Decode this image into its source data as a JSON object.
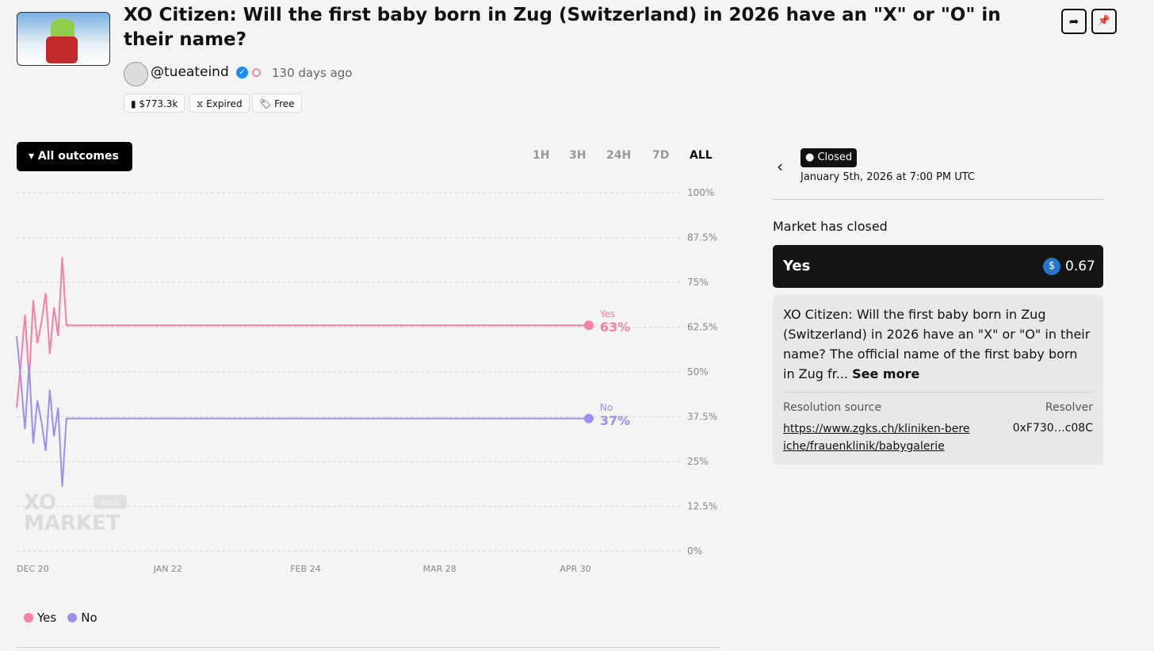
{
  "header": {
    "title": "XO Citizen: Will the first baby born in Zug (Switzerland) in 2026 have an \"X\" or \"O\" in their name?",
    "handle": "@tueateind",
    "age": "130 days ago",
    "stats": [
      "$773.3k",
      "Expired",
      "Free"
    ]
  },
  "controls": {
    "outcomes_button": "All outcomes",
    "ranges": [
      "1H",
      "3H",
      "24H",
      "7D",
      "ALL"
    ],
    "active_range": "ALL"
  },
  "watermark": {
    "brand_top": "XO",
    "brand_bottom": "MARKET",
    "badge": "Beta"
  },
  "chart_data": {
    "type": "line",
    "x": [
      "Dec 20",
      "Dec 21",
      "Dec 22",
      "Dec 23",
      "Dec 24",
      "Dec 25",
      "Dec 26",
      "Dec 27",
      "Dec 28",
      "Dec 29",
      "Dec 30",
      "Dec 31",
      "Jan 1",
      "May 7"
    ],
    "series": [
      {
        "name": "Yes",
        "color": "#f4819f",
        "values": [
          40,
          52,
          66,
          48,
          70,
          58,
          64,
          72,
          55,
          68,
          60,
          82,
          63,
          63
        ],
        "value_labels": [
          null,
          null,
          null,
          null,
          null,
          null,
          null,
          null,
          null,
          null,
          null,
          null,
          null,
          "63%"
        ]
      },
      {
        "name": "No",
        "color": "#9d8ff0",
        "values": [
          60,
          48,
          34,
          52,
          30,
          42,
          36,
          28,
          45,
          32,
          40,
          18,
          37,
          37
        ],
        "value_labels": [
          null,
          null,
          null,
          null,
          null,
          null,
          null,
          null,
          null,
          null,
          null,
          null,
          null,
          "37%"
        ]
      }
    ],
    "xlim": [
      "Dec 20",
      "May 29"
    ],
    "xticks": [
      {
        "value": "Dec 20",
        "label": "DEC 20"
      },
      {
        "value": "Jan 22",
        "label": "JAN 22"
      },
      {
        "value": "Feb 24",
        "label": "FEB 24"
      },
      {
        "value": "Mar 28",
        "label": "MAR 28"
      },
      {
        "value": "Apr 30",
        "label": "APR 30"
      }
    ],
    "ylim": [
      0,
      100
    ],
    "yticks": [
      {
        "value": 0,
        "label": "0%"
      },
      {
        "value": 12.5,
        "label": "12.5%"
      },
      {
        "value": 25,
        "label": "25%"
      },
      {
        "value": 37.5,
        "label": "37.5%"
      },
      {
        "value": 50,
        "label": "50%"
      },
      {
        "value": 62.5,
        "label": "62.5%"
      },
      {
        "value": 75,
        "label": "75%"
      },
      {
        "value": 87.5,
        "label": "87.5%"
      },
      {
        "value": 100,
        "label": "100%"
      }
    ],
    "grid": true,
    "legend": "bottom-left"
  },
  "panel": {
    "status": "Closed",
    "date": "January 5th, 2026 at 7:00 PM UTC",
    "heading": "Market has closed",
    "result": {
      "outcome": "Yes",
      "price": "0.67"
    },
    "description": "XO Citizen: Will the first baby born in Zug (Switzerland) in 2026 have an \"X\" or \"O\" in their name? The official name of the first baby born in Zug fr...",
    "see_more": "See more",
    "source_label": "Resolution source",
    "source_url": "https://www.zgks.ch/kliniken-bereiche/frauenklinik/babygalerie",
    "resolver_label": "Resolver",
    "resolver": "0xF730…c08C"
  }
}
